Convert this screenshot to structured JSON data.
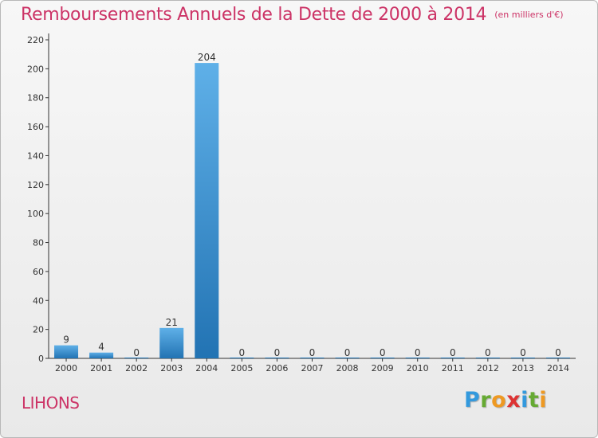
{
  "header": {
    "title": "Remboursements Annuels de la Dette de 2000 à 2014",
    "unit": "(en milliers d'€)"
  },
  "footer": {
    "place": "LIHONS",
    "logo_letters": [
      {
        "ch": "P",
        "color": "#3399dd"
      },
      {
        "ch": "r",
        "color": "#66aa33"
      },
      {
        "ch": "o",
        "color": "#ee9922"
      },
      {
        "ch": "x",
        "color": "#dd3333"
      },
      {
        "ch": "i",
        "color": "#3399dd"
      },
      {
        "ch": "t",
        "color": "#66aa33"
      },
      {
        "ch": "i",
        "color": "#ee9922"
      }
    ]
  },
  "colors": {
    "title": "#cc3366",
    "bar_top": "#5fb0e8",
    "bar_bottom": "#2273b3",
    "axis": "#333333"
  },
  "chart_data": {
    "type": "bar",
    "title": "Remboursements Annuels de la Dette de 2000 à 2014",
    "subtitle": "(en milliers d'€)",
    "xlabel": "",
    "ylabel": "",
    "categories": [
      "2000",
      "2001",
      "2002",
      "2003",
      "2004",
      "2005",
      "2006",
      "2007",
      "2008",
      "2009",
      "2010",
      "2011",
      "2012",
      "2013",
      "2014"
    ],
    "values": [
      9,
      4,
      0,
      21,
      204,
      0,
      0,
      0,
      0,
      0,
      0,
      0,
      0,
      0,
      0
    ],
    "ylim": [
      0,
      220
    ],
    "yticks": [
      0,
      20,
      40,
      60,
      80,
      100,
      120,
      140,
      160,
      180,
      200,
      220
    ],
    "grid": false,
    "data_labels": true
  }
}
